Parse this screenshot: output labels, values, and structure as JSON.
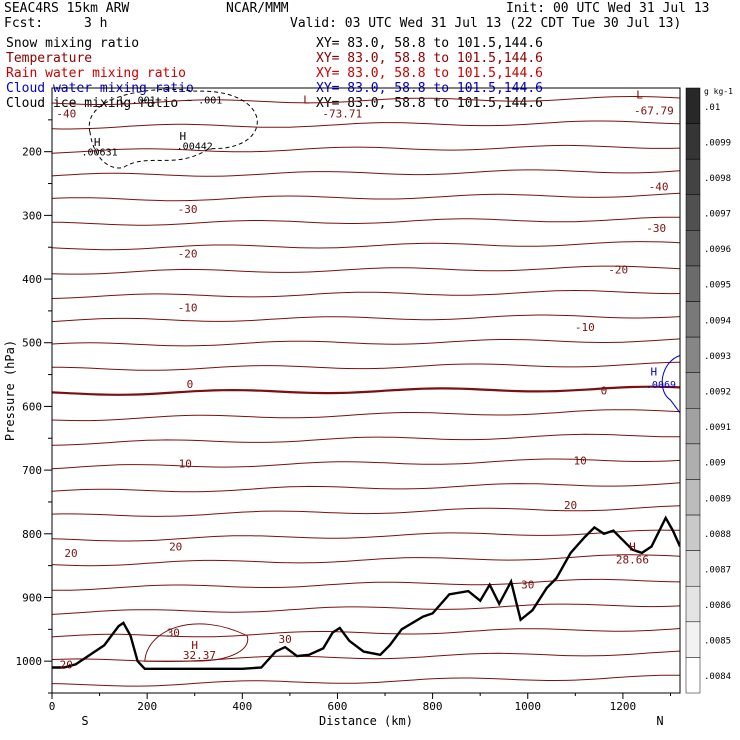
{
  "header": {
    "model": "SEAC4RS 15km ARW",
    "org": "NCAR/MMM",
    "init": "Init: 00 UTC Wed 31 Jul 13",
    "fcst_label": "Fcst:",
    "fcst_value": "3 h",
    "valid": "Valid: 03 UTC Wed 31 Jul 13 (22 CDT Tue 30 Jul 13)",
    "fields": [
      {
        "name": "Snow mixing ratio",
        "xy": "XY= 83.0, 58.8 to 101.5,144.6",
        "color": "#000000"
      },
      {
        "name": "Temperature",
        "xy": "XY= 83.0, 58.8 to 101.5,144.6",
        "color": "#8b0000"
      },
      {
        "name": "Rain water mixing ratio",
        "xy": "XY= 83.0, 58.8 to 101.5,144.6",
        "color": "#cc0000"
      },
      {
        "name": "Cloud water mixing ratio",
        "xy": "XY= 83.0, 58.8 to 101.5,144.6",
        "color": "#0000cc"
      },
      {
        "name": "Cloud ice mixing ratio",
        "xy": "XY= 83.0, 58.8 to 101.5,144.6",
        "color": "#000000"
      }
    ]
  },
  "chart_data": {
    "type": "contour",
    "xlabel": "Distance (km)",
    "ylabel": "Pressure (hPa)",
    "xlim": [
      0,
      1320
    ],
    "ylim": [
      1050,
      100
    ],
    "x_ticks": [
      "0",
      "200",
      "400",
      "600",
      "800",
      "1000",
      "1200"
    ],
    "x_tick_values": [
      0,
      200,
      400,
      600,
      800,
      1000,
      1200
    ],
    "y_ticks": [
      "200",
      "300",
      "400",
      "500",
      "600",
      "700",
      "800",
      "900",
      "1000"
    ],
    "y_tick_values": [
      200,
      300,
      400,
      500,
      600,
      700,
      800,
      900,
      1000
    ],
    "end_labels": {
      "left": "S",
      "right": "N"
    },
    "temperature_contour_labels": [
      {
        "text": "-30",
        "x": 285,
        "p": 290
      },
      {
        "text": "-20",
        "x": 285,
        "p": 360
      },
      {
        "text": "-10",
        "x": 285,
        "p": 445
      },
      {
        "text": "0",
        "x": 290,
        "p": 565
      },
      {
        "text": "10",
        "x": 280,
        "p": 690
      },
      {
        "text": "20",
        "x": 260,
        "p": 820
      },
      {
        "text": "30",
        "x": 255,
        "p": 955
      },
      {
        "text": "20",
        "x": 30,
        "p": 1005
      },
      {
        "text": "20",
        "x": 40,
        "p": 830
      },
      {
        "text": "30",
        "x": 490,
        "p": 965
      },
      {
        "text": "30",
        "x": 1000,
        "p": 880
      },
      {
        "text": "20",
        "x": 1090,
        "p": 755
      },
      {
        "text": "10",
        "x": 1110,
        "p": 685
      },
      {
        "text": "0",
        "x": 1160,
        "p": 575
      },
      {
        "text": "-10",
        "x": 1120,
        "p": 475
      },
      {
        "text": "-20",
        "x": 1190,
        "p": 385
      },
      {
        "text": "-30",
        "x": 1270,
        "p": 320
      },
      {
        "text": "-40",
        "x": 1275,
        "p": 255
      },
      {
        "text": "-40",
        "x": 30,
        "p": 140
      },
      {
        "text": "-73.71",
        "x": 610,
        "p": 140
      },
      {
        "text": "-67.79",
        "x": 1265,
        "p": 135
      },
      {
        "text": "28.66",
        "x": 1220,
        "p": 840
      },
      {
        "text": "32.37",
        "x": 310,
        "p": 990
      }
    ],
    "extrema_markers": [
      {
        "text": "L",
        "x": 535,
        "p": 118,
        "color": "#8b0000"
      },
      {
        "text": "L",
        "x": 1235,
        "p": 110,
        "color": "#8b0000"
      },
      {
        "text": "H",
        "x": 1220,
        "p": 820,
        "color": "#8b0000"
      },
      {
        "text": "H",
        "x": 300,
        "p": 975,
        "color": "#8b0000"
      },
      {
        "text": "H",
        "x": 95,
        "p": 185,
        "color": "#000000"
      },
      {
        "text": "H",
        "x": 275,
        "p": 175,
        "color": "#000000"
      },
      {
        "text": "H",
        "x": 1265,
        "p": 545,
        "color": "#0000cc"
      }
    ],
    "snow_labels": [
      {
        "text": ".00631",
        "x": 100,
        "p": 200
      },
      {
        "text": ".00442",
        "x": 300,
        "p": 190
      },
      {
        "text": "L .001",
        "x": 180,
        "p": 118
      },
      {
        "text": "~ .001",
        "x": 320,
        "p": 118
      }
    ],
    "cloud_water_labels": [
      {
        "text": ".0069",
        "x": 1280,
        "p": 565
      }
    ],
    "terrain_pressure": [
      [
        0,
        1010
      ],
      [
        25,
        1010
      ],
      [
        50,
        1005
      ],
      [
        80,
        990
      ],
      [
        110,
        975
      ],
      [
        140,
        945
      ],
      [
        150,
        940
      ],
      [
        165,
        960
      ],
      [
        180,
        1000
      ],
      [
        195,
        1012
      ],
      [
        230,
        1012
      ],
      [
        300,
        1012
      ],
      [
        400,
        1012
      ],
      [
        440,
        1010
      ],
      [
        470,
        985
      ],
      [
        490,
        978
      ],
      [
        515,
        992
      ],
      [
        540,
        990
      ],
      [
        570,
        980
      ],
      [
        590,
        955
      ],
      [
        605,
        948
      ],
      [
        625,
        968
      ],
      [
        655,
        985
      ],
      [
        690,
        990
      ],
      [
        710,
        975
      ],
      [
        735,
        950
      ],
      [
        780,
        930
      ],
      [
        800,
        925
      ],
      [
        835,
        895
      ],
      [
        875,
        890
      ],
      [
        900,
        905
      ],
      [
        920,
        880
      ],
      [
        940,
        910
      ],
      [
        965,
        875
      ],
      [
        985,
        935
      ],
      [
        1010,
        920
      ],
      [
        1040,
        885
      ],
      [
        1060,
        870
      ],
      [
        1090,
        830
      ],
      [
        1120,
        805
      ],
      [
        1140,
        790
      ],
      [
        1160,
        800
      ],
      [
        1180,
        795
      ],
      [
        1200,
        810
      ],
      [
        1220,
        825
      ],
      [
        1240,
        830
      ],
      [
        1260,
        820
      ],
      [
        1290,
        775
      ],
      [
        1305,
        795
      ],
      [
        1320,
        820
      ]
    ],
    "colorbar": {
      "unit": "g kg-1",
      "levels": [
        ".01",
        ".0099",
        ".0098",
        ".0097",
        ".0096",
        ".0095",
        ".0094",
        ".0093",
        ".0092",
        ".0091",
        ".009",
        ".0089",
        ".0088",
        ".0087",
        ".0086",
        ".0085",
        ".0084"
      ]
    }
  }
}
